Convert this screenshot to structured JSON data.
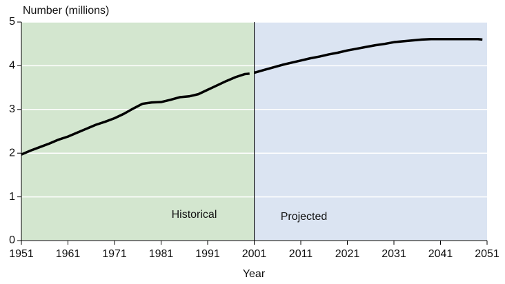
{
  "chart_data": {
    "type": "line",
    "y_label": "Number (millions)",
    "x_label": "Year",
    "xlim": [
      1951,
      2051
    ],
    "xticks": [
      1951,
      1961,
      1971,
      1981,
      1991,
      2001,
      2011,
      2021,
      2031,
      2041,
      2051
    ],
    "ylim": [
      0,
      5
    ],
    "yticks": [
      0,
      1,
      2,
      3,
      4,
      5
    ],
    "grid": true,
    "regions": [
      {
        "label": "Historical",
        "start": 1951,
        "end": 2001,
        "color": "#d3e6cf"
      },
      {
        "label": "Projected",
        "start": 2001,
        "end": 2051,
        "color": "#dbe4f2"
      }
    ],
    "series": [
      {
        "color": "#000000",
        "x": [
          1951,
          1953,
          1955,
          1957,
          1959,
          1961,
          1963,
          1965,
          1967,
          1969,
          1971,
          1973,
          1975,
          1977,
          1979,
          1981,
          1983,
          1985,
          1987,
          1989,
          1991,
          1993,
          1995,
          1997,
          1999,
          2000
        ],
        "values": [
          1.97,
          2.06,
          2.14,
          2.22,
          2.31,
          2.38,
          2.47,
          2.56,
          2.65,
          2.72,
          2.8,
          2.9,
          3.02,
          3.13,
          3.16,
          3.17,
          3.22,
          3.28,
          3.3,
          3.35,
          3.45,
          3.55,
          3.65,
          3.74,
          3.81,
          3.82
        ]
      },
      {
        "color": "#000000",
        "x": [
          2001,
          2003,
          2005,
          2007,
          2009,
          2011,
          2013,
          2015,
          2017,
          2019,
          2021,
          2023,
          2025,
          2027,
          2029,
          2031,
          2033,
          2035,
          2037,
          2039,
          2041,
          2043,
          2045,
          2047,
          2049,
          2050
        ],
        "values": [
          3.84,
          3.9,
          3.96,
          4.02,
          4.07,
          4.12,
          4.17,
          4.21,
          4.26,
          4.3,
          4.35,
          4.39,
          4.43,
          4.47,
          4.5,
          4.54,
          4.56,
          4.58,
          4.6,
          4.61,
          4.61,
          4.61,
          4.61,
          4.61,
          4.61,
          4.6
        ]
      }
    ]
  }
}
